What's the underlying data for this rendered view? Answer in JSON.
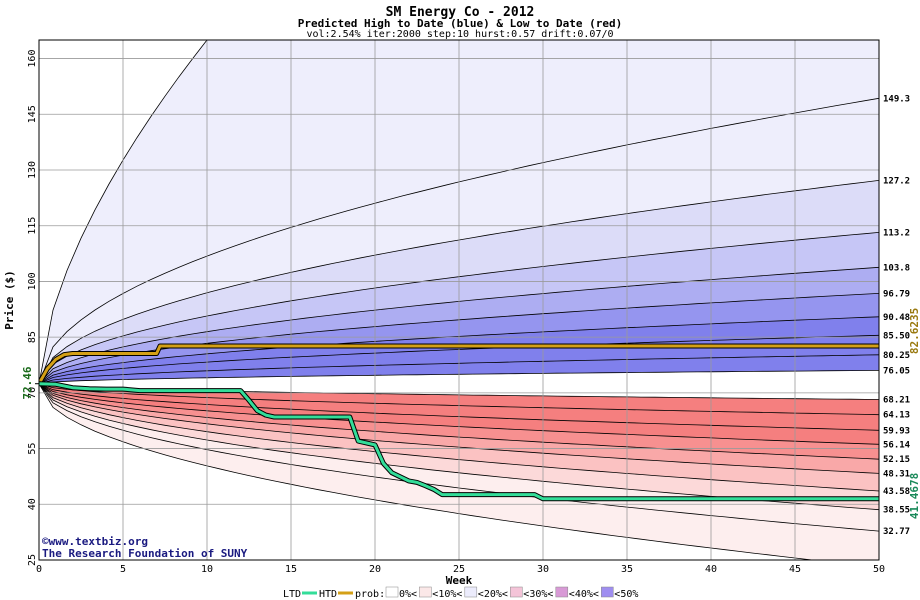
{
  "chart_data": {
    "type": "area",
    "title": "SM Energy Co - 2012",
    "subtitle": "Predicted High to Date (blue) &  Low to Date (red)",
    "params": "vol:2.54% iter:2000 step:10 hurst:0.57 drift:0.07/0",
    "xlabel": "Week",
    "ylabel": "Price ($)",
    "xlim": [
      0,
      50
    ],
    "ylim": [
      25,
      165
    ],
    "x_ticks": [
      0,
      5,
      10,
      15,
      20,
      25,
      30,
      35,
      40,
      45,
      50
    ],
    "y_ticks": [
      25,
      40,
      55,
      70,
      85,
      100,
      115,
      130,
      145,
      160
    ],
    "grid": true,
    "start_price": 72.46,
    "start_label": "72.46",
    "htd_final_label": "82.6235",
    "ltd_final_label": "41.4678",
    "high_quantiles_final": [
      76.05,
      80.25,
      85.5,
      90.48,
      96.79,
      103.8,
      113.2,
      127.2,
      149.3
    ],
    "high_quantile_labels": [
      "76.05",
      "80.25",
      "85.50",
      "90.48",
      "96.79",
      "103.8",
      "113.2",
      "127.2",
      "149.3"
    ],
    "low_quantiles_final": [
      68.21,
      64.13,
      59.93,
      56.14,
      52.15,
      48.31,
      43.58,
      38.55,
      32.77
    ],
    "low_quantile_labels": [
      "68.21",
      "64.13",
      "59.93",
      "56.14",
      "52.15",
      "48.31",
      "43.58",
      "38.55",
      "32.77"
    ],
    "outer_envelope": {
      "upper_at_week_10": 165,
      "lower_final": 23
    },
    "htd_series": {
      "name": "HTD",
      "x": [
        0,
        0.5,
        1,
        1.5,
        2,
        7,
        7.2,
        50
      ],
      "y": [
        72.46,
        76.5,
        79.0,
        80.3,
        80.6,
        80.6,
        82.62,
        82.62
      ]
    },
    "ltd_series": {
      "name": "LTD",
      "x": [
        0,
        1,
        2,
        3,
        4,
        5,
        6,
        7,
        8,
        9,
        10,
        11,
        12,
        12.5,
        13,
        13.5,
        14,
        18.5,
        19,
        20,
        20.5,
        21,
        22,
        22.5,
        23,
        23.5,
        24,
        29.5,
        30,
        50
      ],
      "y": [
        72.46,
        72.3,
        71.4,
        71.1,
        71.0,
        71.0,
        70.6,
        70.6,
        70.6,
        70.6,
        70.6,
        70.6,
        70.6,
        68.0,
        65.2,
        64.0,
        63.5,
        63.5,
        57.0,
        56.0,
        51.0,
        48.5,
        46.3,
        45.9,
        45.0,
        44.0,
        42.6,
        42.6,
        41.47,
        41.47
      ]
    },
    "colors": {
      "htd": "#d4a017",
      "ltd": "#33dd99",
      "blue_bands": [
        "#eeeefc",
        "#dcdcf8",
        "#c6c6f6",
        "#adadf2",
        "#9595ef",
        "#8080ec"
      ],
      "red_bands": [
        "#fdeeee",
        "#fcd9d9",
        "#fbc2c2",
        "#f9a8a8",
        "#f79090",
        "#f57f7f"
      ],
      "start_label": "#1b6b1b",
      "htd_label": "#9a7a10",
      "ltd_label": "#1a8a5a",
      "credit": "#1a1a80"
    },
    "legend": {
      "ltd": "LTD",
      "htd": "HTD",
      "prob_prefix": "prob:",
      "items": [
        "0%<",
        "<10%<",
        "<20%<",
        "<30%<",
        "<40%<",
        "<50%"
      ],
      "swatches": [
        "#ffffff",
        "#fbe8e8",
        "#ececfc",
        "#f4c4d8",
        "#d89ad6",
        "#9f8ef0"
      ]
    },
    "credit_lines": [
      "©www.textbiz.org",
      "The Research Foundation of SUNY"
    ]
  }
}
